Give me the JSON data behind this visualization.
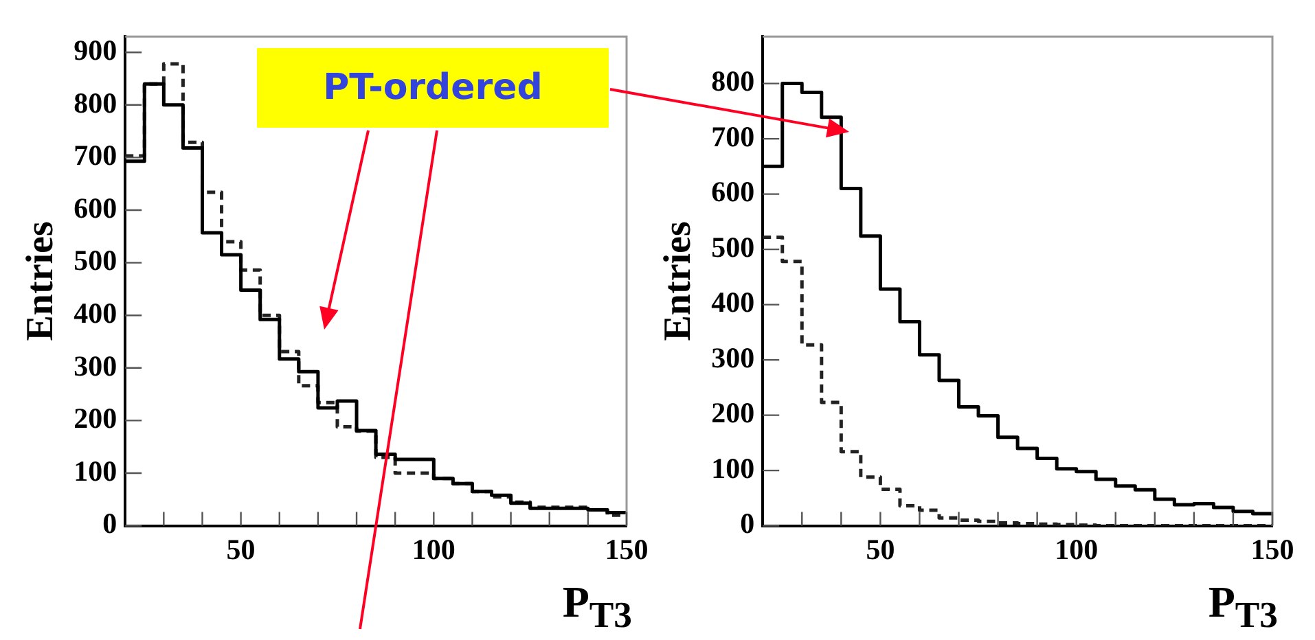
{
  "chart_data": [
    {
      "type": "histogram",
      "xlabel": "P$_{T3}$",
      "ylabel": "Entries",
      "annotations": [
        "PT-ordered"
      ],
      "bins": [
        20,
        25,
        30,
        35,
        40,
        45,
        50,
        55,
        60,
        65,
        70,
        75,
        80,
        85,
        90,
        95,
        100,
        105,
        110,
        115,
        120,
        125,
        130,
        135,
        140,
        145,
        150
      ],
      "series": [
        {
          "color": "#000000",
          "line_style": "solid",
          "values": [
            693,
            840,
            800,
            718,
            557,
            515,
            448,
            392,
            317,
            293,
            224,
            237,
            181,
            136,
            126,
            126,
            90,
            80,
            65,
            58,
            43,
            33,
            33,
            33,
            30,
            25
          ]
        },
        {
          "color": "#222222",
          "line_style": "dashed",
          "values": [
            703,
            840,
            878,
            729,
            634,
            540,
            486,
            400,
            331,
            266,
            234,
            188,
            180,
            130,
            100,
            100,
            90,
            80,
            65,
            55,
            45,
            35,
            35,
            35,
            30,
            20
          ]
        }
      ],
      "xlim": [
        20,
        150
      ],
      "xticks": [
        {
          "value": 30,
          "label": null
        },
        {
          "value": 40,
          "label": null
        },
        50,
        {
          "value": 60,
          "label": null
        },
        {
          "value": 70,
          "label": null
        },
        {
          "value": 80,
          "label": null
        },
        {
          "value": 90,
          "label": null
        },
        100,
        {
          "value": 110,
          "label": null
        },
        {
          "value": 120,
          "label": null
        },
        {
          "value": 130,
          "label": null
        },
        {
          "value": 140,
          "label": null
        },
        150
      ],
      "ylim": [
        0,
        930
      ],
      "yticks": [
        0,
        100,
        200,
        300,
        400,
        500,
        600,
        700,
        800,
        900
      ],
      "grid": false,
      "legend": false,
      "marker": "none"
    },
    {
      "type": "histogram",
      "xlabel": "P$_{T3}$",
      "ylabel": "Entries",
      "bins": [
        20,
        25,
        30,
        35,
        40,
        45,
        50,
        55,
        60,
        65,
        70,
        75,
        80,
        85,
        90,
        95,
        100,
        105,
        110,
        115,
        120,
        125,
        130,
        135,
        140,
        145,
        150
      ],
      "series": [
        {
          "color": "#000000",
          "line_style": "solid",
          "values": [
            650,
            800,
            784,
            739,
            610,
            524,
            428,
            369,
            309,
            263,
            215,
            199,
            160,
            140,
            122,
            103,
            98,
            84,
            72,
            65,
            48,
            38,
            40,
            33,
            26,
            22
          ]
        },
        {
          "color": "#222222",
          "line_style": "dashed",
          "values": [
            522,
            478,
            327,
            223,
            134,
            88,
            66,
            36,
            28,
            14,
            10,
            8,
            5,
            4,
            3,
            2,
            1,
            0,
            0,
            0,
            0,
            0,
            0,
            0,
            0,
            0
          ]
        }
      ],
      "xlim": [
        20,
        150
      ],
      "xticks": [
        {
          "value": 30,
          "label": null
        },
        {
          "value": 40,
          "label": null
        },
        50,
        {
          "value": 60,
          "label": null
        },
        {
          "value": 70,
          "label": null
        },
        {
          "value": 80,
          "label": null
        },
        {
          "value": 90,
          "label": null
        },
        100,
        {
          "value": 110,
          "label": null
        },
        {
          "value": 120,
          "label": null
        },
        {
          "value": 130,
          "label": null
        },
        {
          "value": 140,
          "label": null
        },
        150
      ],
      "ylim": [
        0,
        885
      ],
      "yticks": [
        0,
        100,
        200,
        300,
        400,
        500,
        600,
        700,
        800
      ],
      "grid": false,
      "legend": false,
      "marker": "none"
    }
  ]
}
